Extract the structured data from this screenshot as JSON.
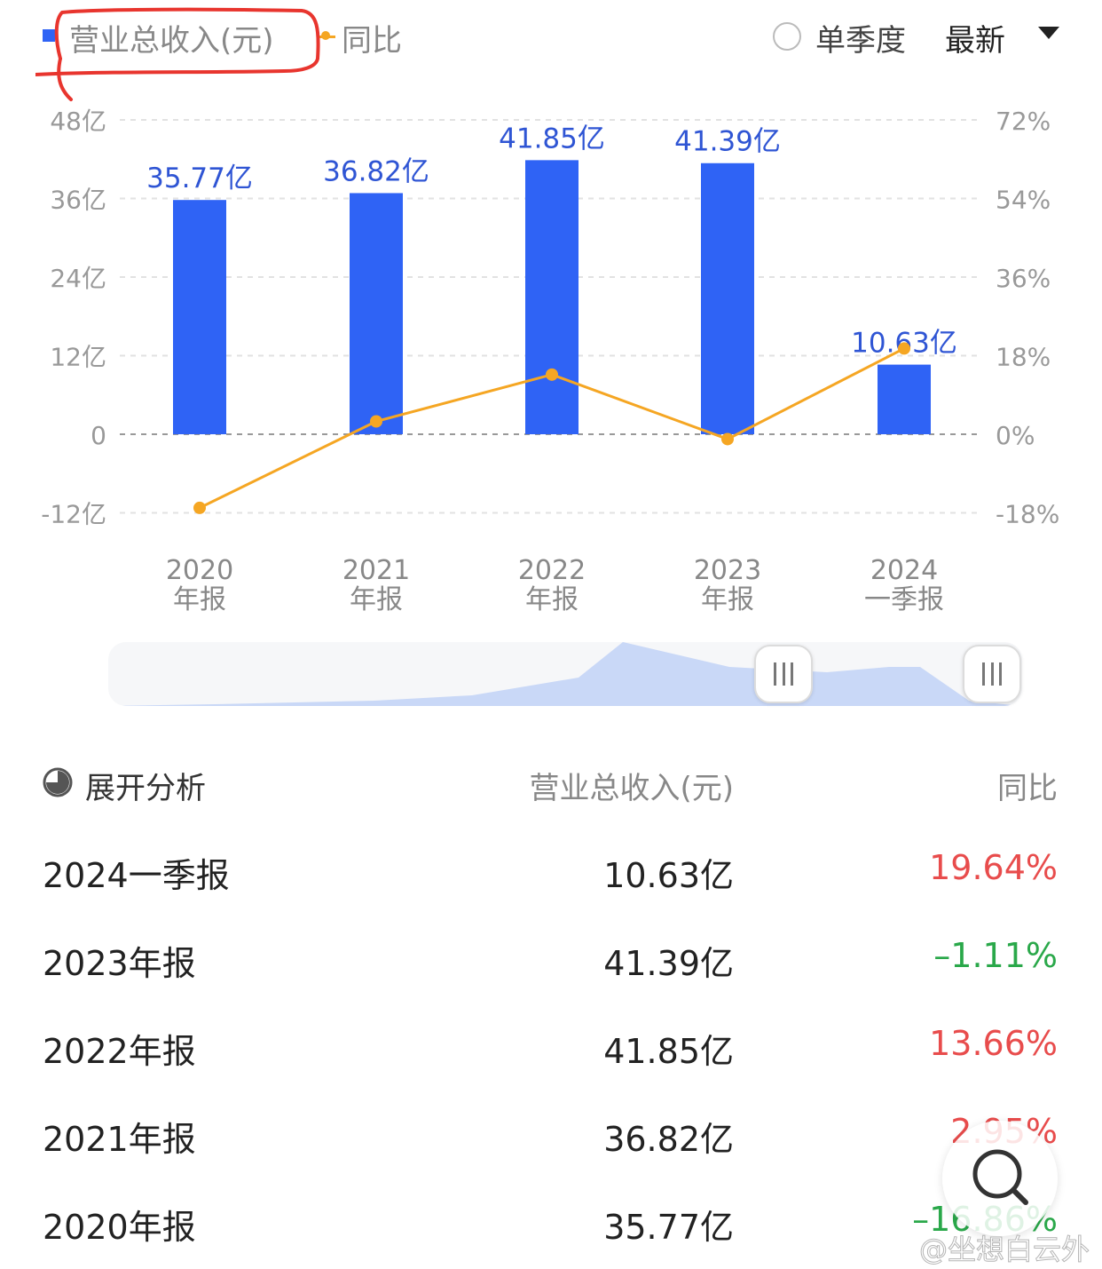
{
  "legend": {
    "revenue_label": "营业总收入(元)",
    "yoy_label": "同比"
  },
  "controls": {
    "quarter_toggle_label": "单季度",
    "sort_label": "最新"
  },
  "colors": {
    "bar": "#2f63f5",
    "line": "#f5a623",
    "up": "#e84c4c",
    "down": "#2aa84a"
  },
  "chart_data": {
    "type": "bar",
    "categories": [
      [
        "2020",
        "年报"
      ],
      [
        "2021",
        "年报"
      ],
      [
        "2022",
        "年报"
      ],
      [
        "2023",
        "年报"
      ],
      [
        "2024",
        "一季报"
      ]
    ],
    "series": [
      {
        "name": "营业总收入(元)",
        "type": "bar",
        "axis": "left",
        "values": [
          35.77,
          36.82,
          41.85,
          41.39,
          10.63
        ],
        "labels": [
          "35.77亿",
          "36.82亿",
          "41.85亿",
          "41.39亿",
          "10.63亿"
        ]
      },
      {
        "name": "同比",
        "type": "line",
        "axis": "right",
        "values": [
          -16.86,
          2.95,
          13.66,
          -1.11,
          19.64
        ]
      }
    ],
    "y_left": {
      "ticks": [
        "48亿",
        "36亿",
        "24亿",
        "12亿",
        "0",
        "-12亿"
      ],
      "ylim": [
        -12,
        48
      ]
    },
    "y_right": {
      "ticks": [
        "72%",
        "54%",
        "36%",
        "18%",
        "0%",
        "-18%"
      ],
      "ylim": [
        -18,
        72
      ]
    },
    "grid": true
  },
  "table": {
    "section_label": "展开分析",
    "header_value": "营业总收入(元)",
    "header_pct": "同比",
    "rows": [
      {
        "period": "2024一季报",
        "value": "10.63亿",
        "pct": "19.64%",
        "dir": "up"
      },
      {
        "period": "2023年报",
        "value": "41.39亿",
        "pct": "–1.11%",
        "dir": "down"
      },
      {
        "period": "2022年报",
        "value": "41.85亿",
        "pct": "13.66%",
        "dir": "up"
      },
      {
        "period": "2021年报",
        "value": "36.82亿",
        "pct": "2.95%",
        "dir": "up"
      },
      {
        "period": "2020年报",
        "value": "35.77亿",
        "pct": "–16.86%",
        "dir": "down"
      }
    ]
  },
  "watermark": "@坐想白云外"
}
